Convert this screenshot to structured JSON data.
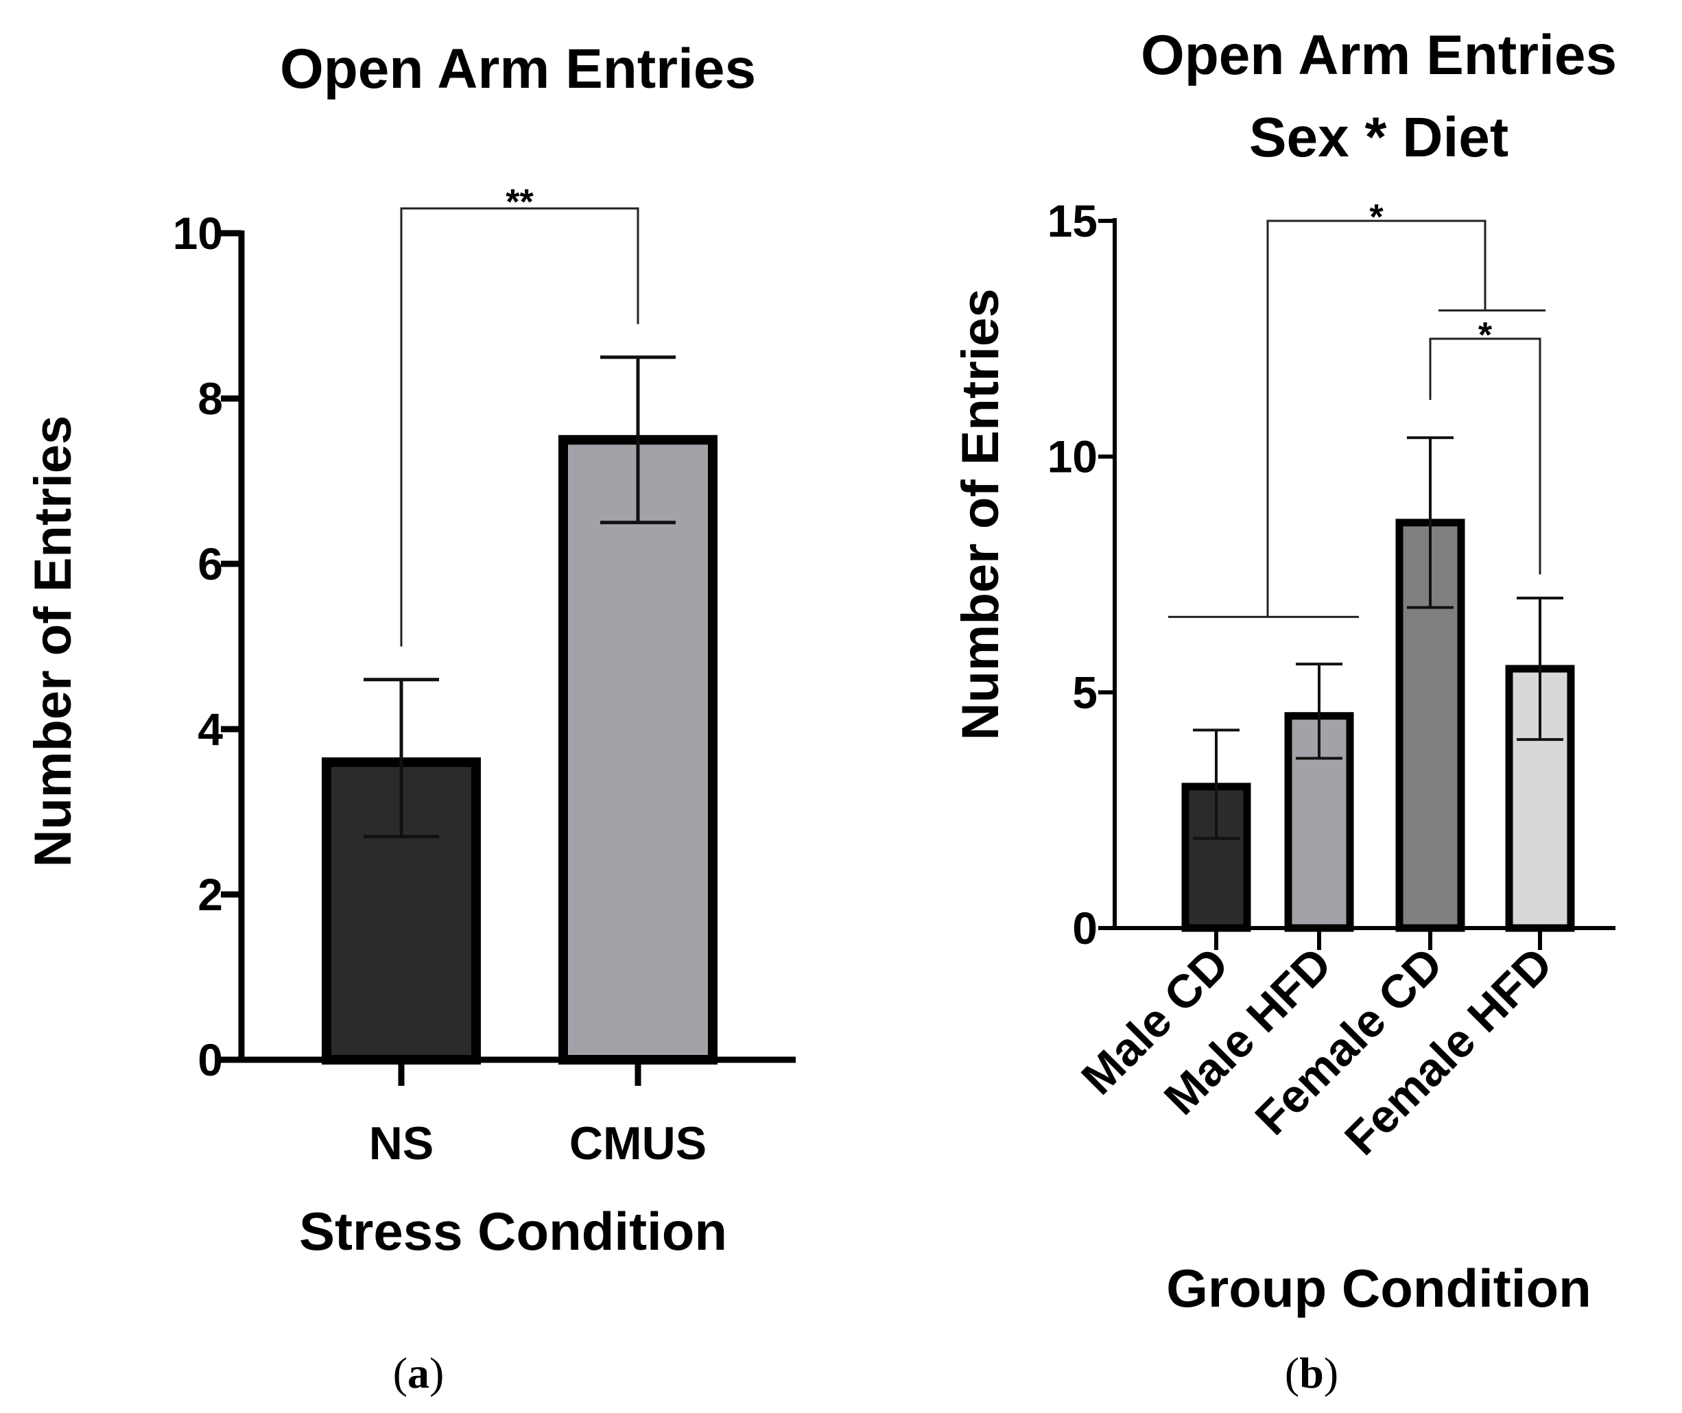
{
  "panels": [
    {
      "panel_label": "a",
      "chart_data": {
        "type": "bar",
        "title": "Open Arm Entries",
        "subtitle": "",
        "xlabel": "Stress Condition",
        "ylabel": "Number of Entries",
        "categories": [
          "NS",
          "CMUS"
        ],
        "values": [
          3.6,
          7.5
        ],
        "error_low": [
          2.7,
          6.5
        ],
        "error_high": [
          4.6,
          8.5
        ],
        "colors": [
          "#2b2b2b",
          "#a2a2a8"
        ],
        "ylim": [
          0,
          10
        ],
        "yticks": [
          0,
          2,
          4,
          6,
          8,
          10
        ],
        "grid": false,
        "significance": [
          {
            "label": "**",
            "from": 0,
            "to": 1,
            "level": 10.3,
            "drop_from": 5.0,
            "drop_to": 8.9
          }
        ]
      }
    },
    {
      "panel_label": "b",
      "chart_data": {
        "type": "bar",
        "title": "Open Arm Entries",
        "subtitle": "Sex * Diet",
        "xlabel": "Group Condition",
        "ylabel": "Number of Entries",
        "categories": [
          "Male CD",
          "Male HFD",
          "Female CD",
          "Female HFD"
        ],
        "values": [
          3.0,
          4.5,
          8.6,
          5.5
        ],
        "error_low": [
          1.9,
          3.6,
          6.8,
          4.0
        ],
        "error_high": [
          4.2,
          5.6,
          10.4,
          7.0
        ],
        "colors": [
          "#2b2b2b",
          "#a2a2a8",
          "#7f7f7f",
          "#d8d8d8"
        ],
        "ylim": [
          0,
          15
        ],
        "yticks": [
          0,
          5,
          10,
          15
        ],
        "grid": false,
        "significance": [
          {
            "label": "*",
            "group_a": [
              0,
              1
            ],
            "group_b": [
              2,
              3
            ],
            "level": 15.0,
            "bar_a": 6.6,
            "bar_b": 13.1
          },
          {
            "label": "*",
            "from": 2,
            "to": 3,
            "level": 12.5,
            "drop_from": 11.2,
            "drop_to": 7.5
          }
        ]
      }
    }
  ]
}
